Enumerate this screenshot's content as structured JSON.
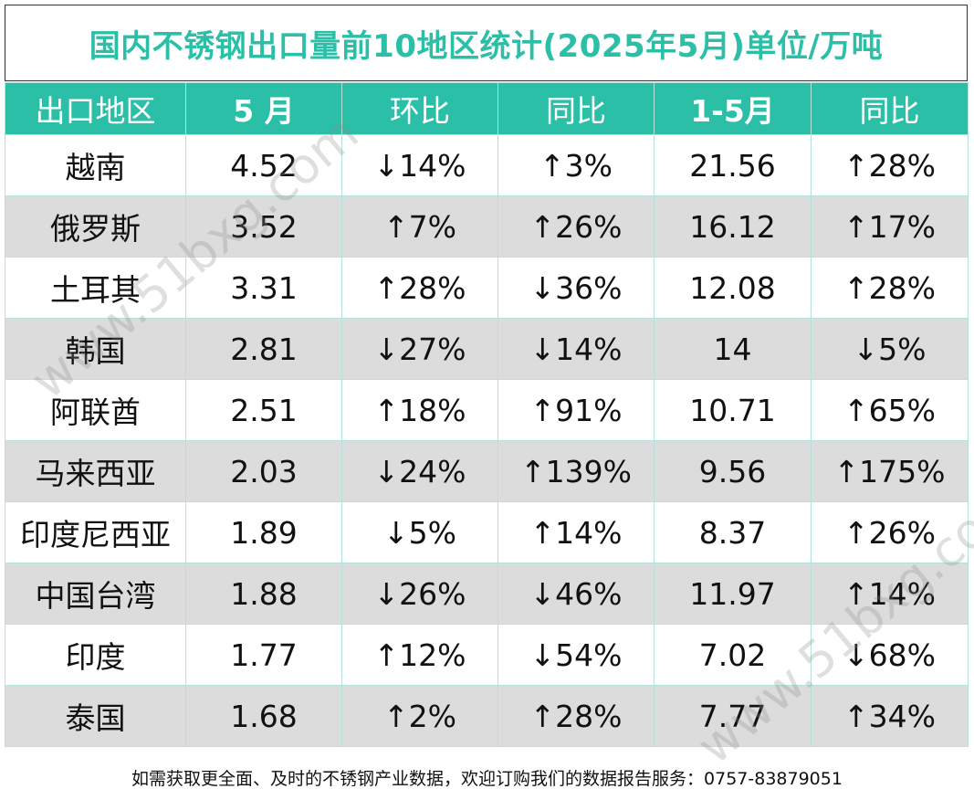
{
  "title": "国内不锈钢出口量前10地区统计(2025年5月)单位/万吨",
  "footer": "如需获取更全面、及时的不锈钢产业数据，欢迎订购我们的数据报告服务：0757-83879051",
  "watermark": "www.51bxg.com",
  "colors": {
    "header_bg": "#2bbfa8",
    "up": "#ee1c1c",
    "down": "#22aa44",
    "alt_row": "#dcdcdc"
  },
  "chart_data": {
    "type": "table",
    "title": "国内不锈钢出口量前10地区统计(2025年5月)单位/万吨",
    "columns": [
      "出口地区",
      "5 月",
      "环比",
      "同比",
      "1-5月",
      "同比"
    ],
    "rows": [
      {
        "region": "越南",
        "may": "4.52",
        "mom": "↓14%",
        "yoy": "↑3%",
        "ytd": "21.56",
        "ytd_yoy": "↑28%"
      },
      {
        "region": "俄罗斯",
        "may": "3.52",
        "mom": "↑7%",
        "yoy": "↑26%",
        "ytd": "16.12",
        "ytd_yoy": "↑17%"
      },
      {
        "region": "土耳其",
        "may": "3.31",
        "mom": "↑28%",
        "yoy": "↓36%",
        "ytd": "12.08",
        "ytd_yoy": "↑28%"
      },
      {
        "region": "韩国",
        "may": "2.81",
        "mom": "↓27%",
        "yoy": "↓14%",
        "ytd": "14",
        "ytd_yoy": "↓5%"
      },
      {
        "region": "阿联酋",
        "may": "2.51",
        "mom": "↑18%",
        "yoy": "↑91%",
        "ytd": "10.71",
        "ytd_yoy": "↑65%"
      },
      {
        "region": "马来西亚",
        "may": "2.03",
        "mom": "↓24%",
        "yoy": "↑139%",
        "ytd": "9.56",
        "ytd_yoy": "↑175%"
      },
      {
        "region": "印度尼西亚",
        "may": "1.89",
        "mom": "↓5%",
        "yoy": "↑14%",
        "ytd": "8.37",
        "ytd_yoy": "↑26%"
      },
      {
        "region": "中国台湾",
        "may": "1.88",
        "mom": "↓26%",
        "yoy": "↓46%",
        "ytd": "11.97",
        "ytd_yoy": "↑14%"
      },
      {
        "region": "印度",
        "may": "1.77",
        "mom": "↑12%",
        "yoy": "↓54%",
        "ytd": "7.02",
        "ytd_yoy": "↓68%"
      },
      {
        "region": "泰国",
        "may": "1.68",
        "mom": "↑2%",
        "yoy": "↑28%",
        "ytd": "7.77",
        "ytd_yoy": "↑34%"
      }
    ]
  }
}
